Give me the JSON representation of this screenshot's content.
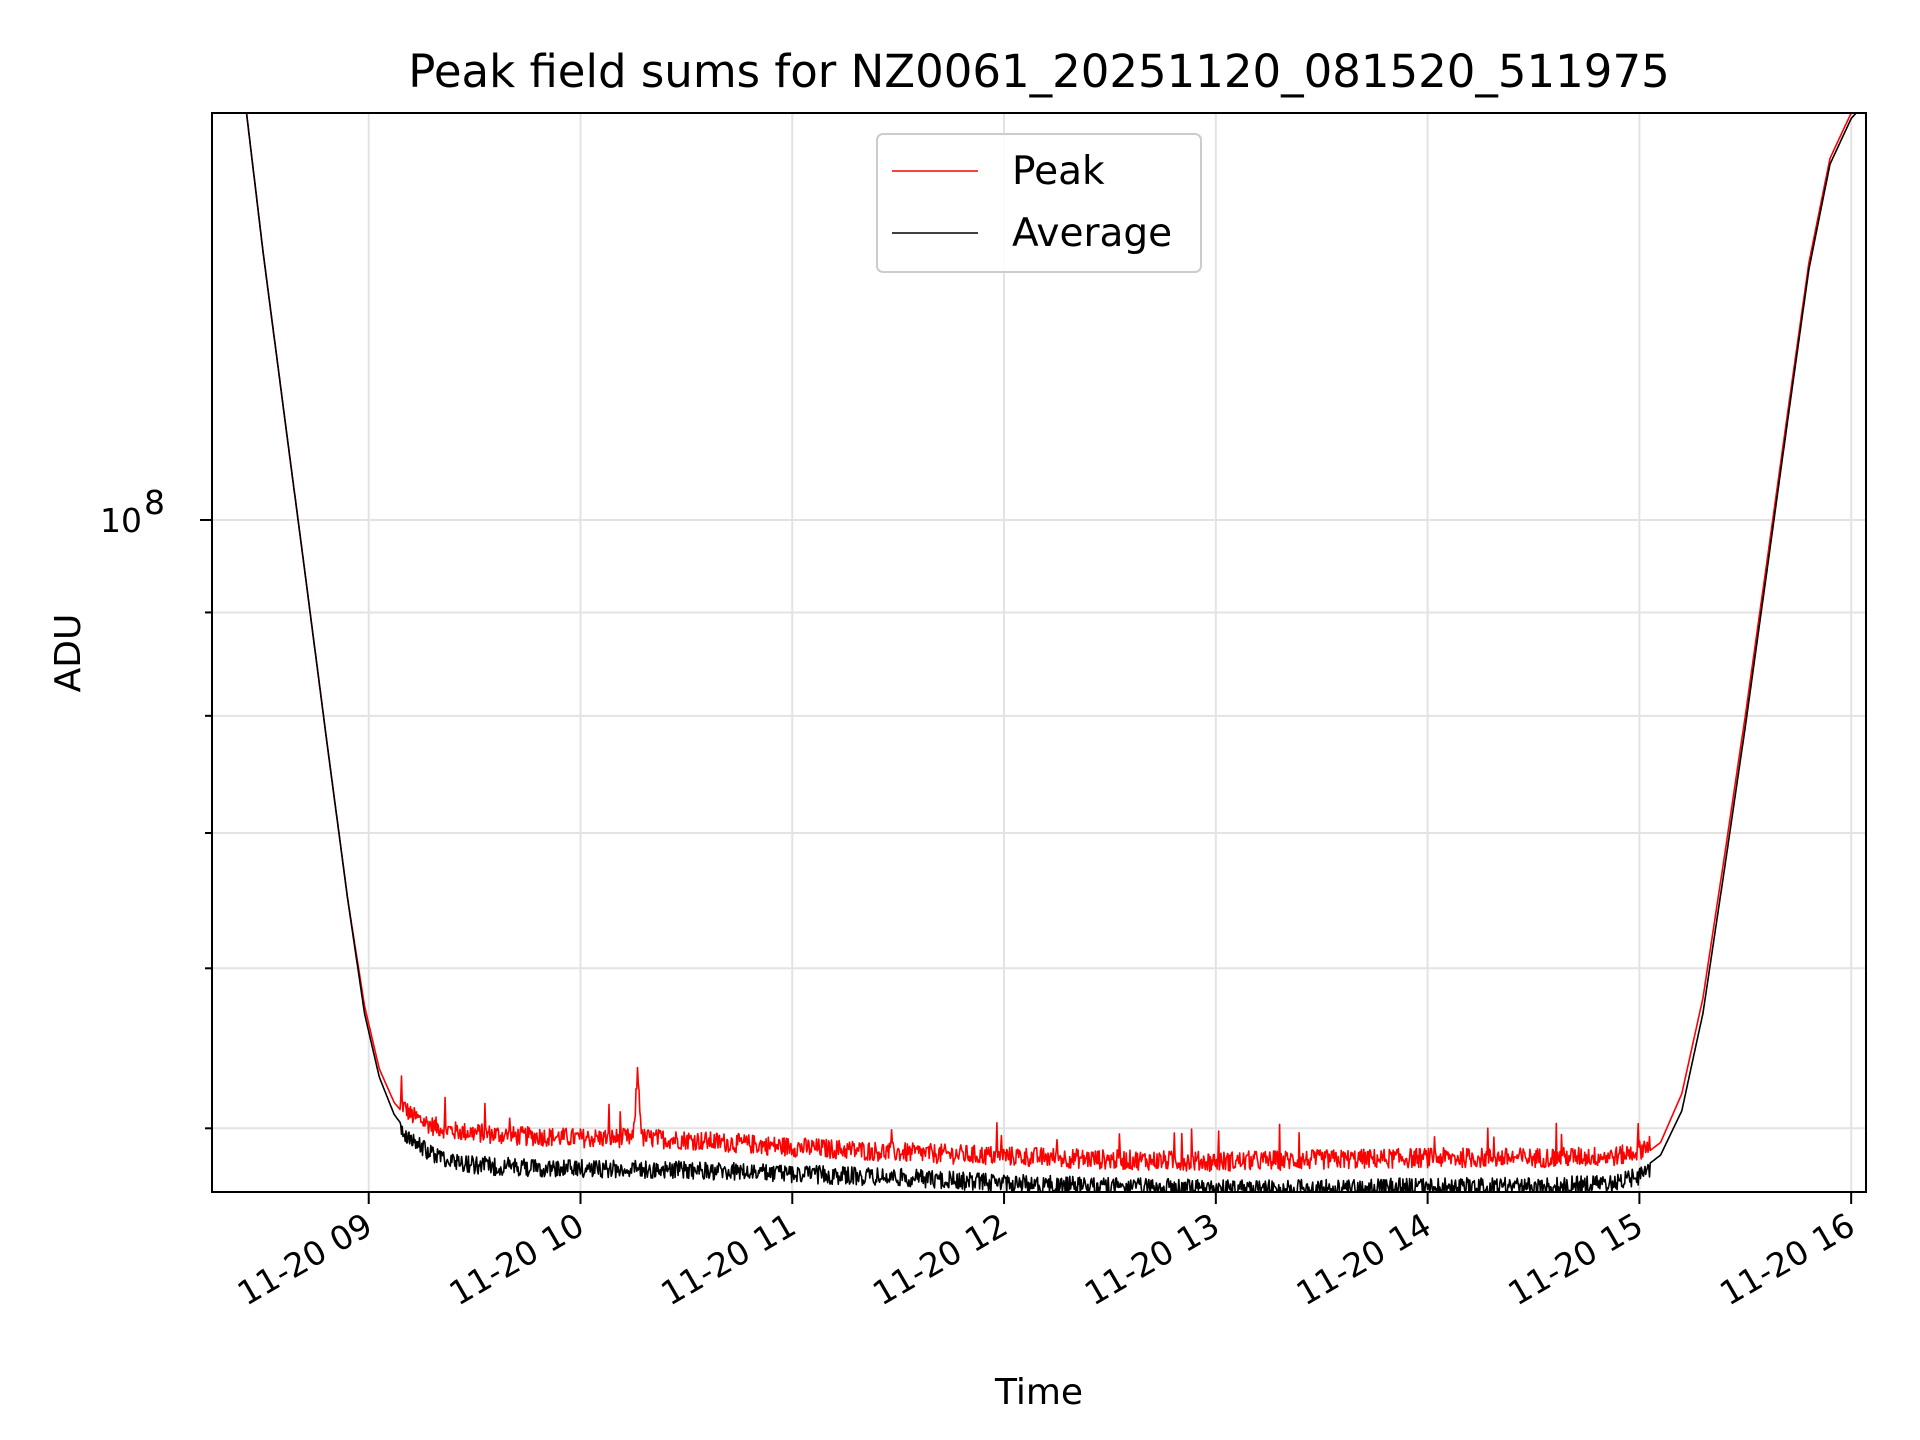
{
  "chart_data": {
    "type": "line",
    "title": "Peak field sums for NZ0061_20251120_081520_511975",
    "xlabel": "Time",
    "ylabel": "ADU",
    "yscale": "log",
    "xlim": [
      8.26,
      16.07
    ],
    "ylim": [
      46500000,
      159000000
    ],
    "x_ticks": [
      {
        "value": 9,
        "label": "11-20 09"
      },
      {
        "value": 10,
        "label": "11-20 10"
      },
      {
        "value": 11,
        "label": "11-20 11"
      },
      {
        "value": 12,
        "label": "11-20 12"
      },
      {
        "value": 13,
        "label": "11-20 13"
      },
      {
        "value": 14,
        "label": "11-20 14"
      },
      {
        "value": 15,
        "label": "11-20 15"
      },
      {
        "value": 16,
        "label": "11-20 16"
      }
    ],
    "y_major_ticks": [
      {
        "value": 100000000,
        "base": "10",
        "exponent": "8"
      }
    ],
    "y_minor_ticks": [
      50000000,
      60000000,
      70000000,
      80000000,
      90000000,
      200000000
    ],
    "grid": true,
    "legend": {
      "position": "top-center",
      "entries": [
        "Peak",
        "Average"
      ]
    },
    "series": [
      {
        "name": "Peak",
        "color": "#ff0000",
        "x": [
          8.26,
          8.42,
          8.5,
          8.6,
          8.7,
          8.8,
          8.9,
          8.98,
          9.05,
          9.12,
          9.2,
          9.3,
          9.4,
          9.5,
          9.6,
          9.7,
          9.8,
          10.0,
          10.25,
          10.27,
          10.29,
          10.5,
          11.0,
          11.5,
          12.0,
          12.5,
          13.0,
          13.5,
          14.0,
          14.5,
          14.9,
          15.0,
          15.1,
          15.2,
          15.3,
          15.4,
          15.5,
          15.6,
          15.7,
          15.8,
          15.9,
          16.0,
          16.07
        ],
        "y": [
          165000000,
          160000000,
          136000000,
          113000000,
          94000000,
          78000000,
          65000000,
          57500000,
          53500000,
          51500000,
          50300000,
          49700000,
          49400000,
          49300000,
          49200000,
          49100000,
          49100000,
          49000000,
          49000000,
          53000000,
          49000000,
          48900000,
          48500000,
          48200000,
          48000000,
          47800000,
          47700000,
          47800000,
          47900000,
          47900000,
          48000000,
          48300000,
          49200000,
          52000000,
          58000000,
          68000000,
          80000000,
          95000000,
          113000000,
          134000000,
          151000000,
          159000000,
          162000000
        ],
        "noise_band_mad": 500000
      },
      {
        "name": "Average",
        "color": "#000000",
        "x": [
          8.26,
          8.42,
          8.5,
          8.6,
          8.7,
          8.8,
          8.9,
          8.98,
          9.05,
          9.12,
          9.2,
          9.3,
          9.4,
          9.5,
          9.6,
          9.7,
          9.8,
          10.0,
          10.5,
          11.0,
          11.5,
          12.0,
          12.5,
          13.0,
          13.5,
          14.0,
          14.5,
          14.9,
          15.0,
          15.1,
          15.2,
          15.3,
          15.4,
          15.5,
          15.6,
          15.7,
          15.8,
          15.9,
          16.0,
          16.07
        ],
        "y": [
          165000000,
          160000000,
          136000000,
          113000000,
          94000000,
          78000000,
          65000000,
          57000000,
          53000000,
          50800000,
          49500000,
          48800000,
          48400000,
          48200000,
          48100000,
          48100000,
          48000000,
          48000000,
          47900000,
          47700000,
          47500000,
          47200000,
          47000000,
          46900000,
          46900000,
          47000000,
          47000000,
          47200000,
          47600000,
          48500000,
          51000000,
          57000000,
          67000000,
          79000000,
          94000000,
          112000000,
          133000000,
          150000000,
          158000000,
          161000000
        ],
        "noise_band_mad": 450000
      }
    ]
  }
}
